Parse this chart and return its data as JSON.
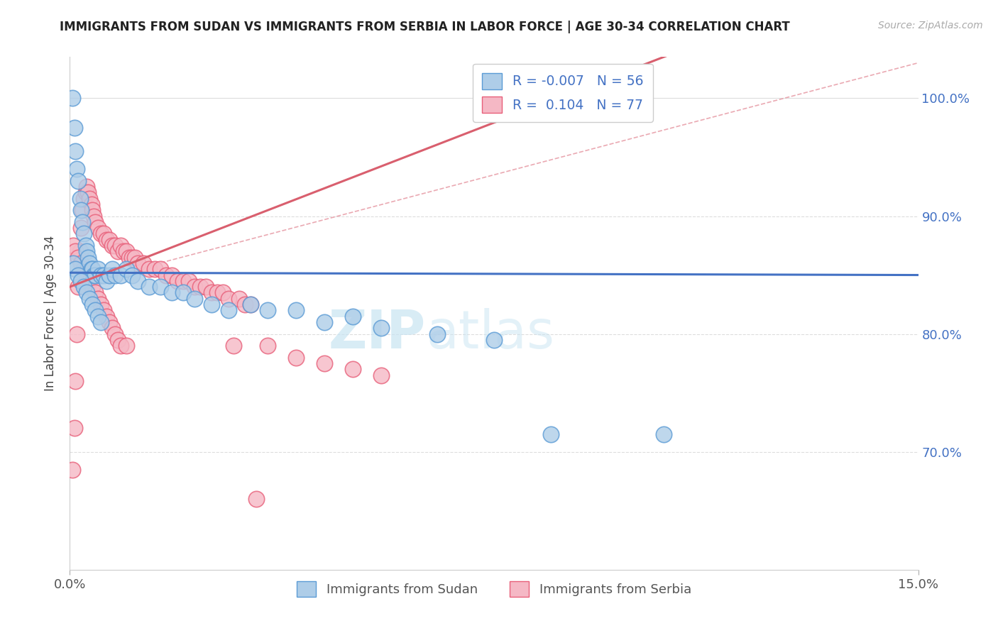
{
  "title": "IMMIGRANTS FROM SUDAN VS IMMIGRANTS FROM SERBIA IN LABOR FORCE | AGE 30-34 CORRELATION CHART",
  "source": "Source: ZipAtlas.com",
  "ylabel": "In Labor Force | Age 30-34",
  "xlim": [
    0.0,
    15.0
  ],
  "ylim": [
    60.0,
    103.5
  ],
  "xtick_left": "0.0%",
  "xtick_right": "15.0%",
  "yticks": [
    70.0,
    80.0,
    90.0,
    100.0
  ],
  "sudan_color": "#aecde8",
  "serbia_color": "#f5b8c5",
  "sudan_edge": "#5b9bd5",
  "serbia_edge": "#e8607a",
  "sudan_trend_color": "#4472c4",
  "serbia_trend_color": "#d95f6e",
  "diag_color": "#e8a0aa",
  "diag_style": "--",
  "grid_color": "#dddddd",
  "grid_style": "--",
  "legend_R_sudan": "-0.007",
  "legend_N_sudan": "56",
  "legend_R_serbia": "0.104",
  "legend_N_serbia": "77",
  "watermark": "ZIPatlas",
  "watermark_color": "#c8e4f2",
  "sudan_x": [
    0.05,
    0.08,
    0.1,
    0.12,
    0.15,
    0.18,
    0.2,
    0.22,
    0.25,
    0.28,
    0.3,
    0.32,
    0.35,
    0.38,
    0.4,
    0.42,
    0.45,
    0.5,
    0.55,
    0.6,
    0.65,
    0.7,
    0.75,
    0.8,
    0.9,
    1.0,
    1.1,
    1.2,
    1.4,
    1.6,
    1.8,
    2.0,
    2.2,
    2.5,
    2.8,
    3.2,
    3.5,
    4.0,
    4.5,
    5.0,
    5.5,
    6.5,
    7.5,
    8.5,
    10.5,
    0.06,
    0.1,
    0.15,
    0.2,
    0.25,
    0.3,
    0.35,
    0.4,
    0.45,
    0.5,
    0.55
  ],
  "sudan_y": [
    100.0,
    97.5,
    95.5,
    94.0,
    93.0,
    91.5,
    90.5,
    89.5,
    88.5,
    87.5,
    87.0,
    86.5,
    86.0,
    85.5,
    85.5,
    85.0,
    85.0,
    85.5,
    85.0,
    85.0,
    84.5,
    85.0,
    85.5,
    85.0,
    85.0,
    85.5,
    85.0,
    84.5,
    84.0,
    84.0,
    83.5,
    83.5,
    83.0,
    82.5,
    82.0,
    82.5,
    82.0,
    82.0,
    81.0,
    81.5,
    80.5,
    80.0,
    79.5,
    71.5,
    71.5,
    86.0,
    85.5,
    85.0,
    84.5,
    84.0,
    83.5,
    83.0,
    82.5,
    82.0,
    81.5,
    81.0
  ],
  "serbia_x": [
    0.05,
    0.08,
    0.1,
    0.12,
    0.15,
    0.18,
    0.2,
    0.22,
    0.25,
    0.28,
    0.3,
    0.32,
    0.35,
    0.38,
    0.4,
    0.42,
    0.45,
    0.5,
    0.55,
    0.6,
    0.65,
    0.7,
    0.75,
    0.8,
    0.85,
    0.9,
    0.95,
    1.0,
    1.05,
    1.1,
    1.15,
    1.2,
    1.3,
    1.4,
    1.5,
    1.6,
    1.7,
    1.8,
    1.9,
    2.0,
    2.1,
    2.2,
    2.3,
    2.4,
    2.5,
    2.6,
    2.7,
    2.8,
    2.9,
    3.0,
    3.1,
    3.2,
    3.5,
    4.0,
    4.5,
    5.0,
    5.5,
    0.06,
    0.1,
    0.15,
    0.2,
    0.25,
    0.3,
    0.35,
    0.4,
    0.45,
    0.5,
    0.55,
    0.6,
    0.65,
    0.7,
    0.75,
    0.8,
    0.85,
    0.9,
    1.0,
    3.3
  ],
  "serbia_y": [
    68.5,
    72.0,
    76.0,
    80.0,
    84.0,
    87.0,
    89.0,
    90.5,
    91.5,
    92.0,
    92.5,
    92.0,
    91.5,
    91.0,
    90.5,
    90.0,
    89.5,
    89.0,
    88.5,
    88.5,
    88.0,
    88.0,
    87.5,
    87.5,
    87.0,
    87.5,
    87.0,
    87.0,
    86.5,
    86.5,
    86.5,
    86.0,
    86.0,
    85.5,
    85.5,
    85.5,
    85.0,
    85.0,
    84.5,
    84.5,
    84.5,
    84.0,
    84.0,
    84.0,
    83.5,
    83.5,
    83.5,
    83.0,
    79.0,
    83.0,
    82.5,
    82.5,
    79.0,
    78.0,
    77.5,
    77.0,
    76.5,
    87.5,
    87.0,
    86.5,
    86.0,
    85.5,
    85.0,
    84.5,
    84.0,
    83.5,
    83.0,
    82.5,
    82.0,
    81.5,
    81.0,
    80.5,
    80.0,
    79.5,
    79.0,
    79.0,
    66.0
  ]
}
